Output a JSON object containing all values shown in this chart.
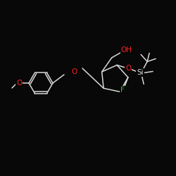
{
  "bg_color": "#080808",
  "bond_color": "#d8d8d8",
  "label_colors": {
    "O": "#ff2020",
    "F": "#22cc22",
    "Si": "#d8d8d8",
    "OH": "#ff2020"
  },
  "font_size_atom": 7.5,
  "line_width": 1.1
}
